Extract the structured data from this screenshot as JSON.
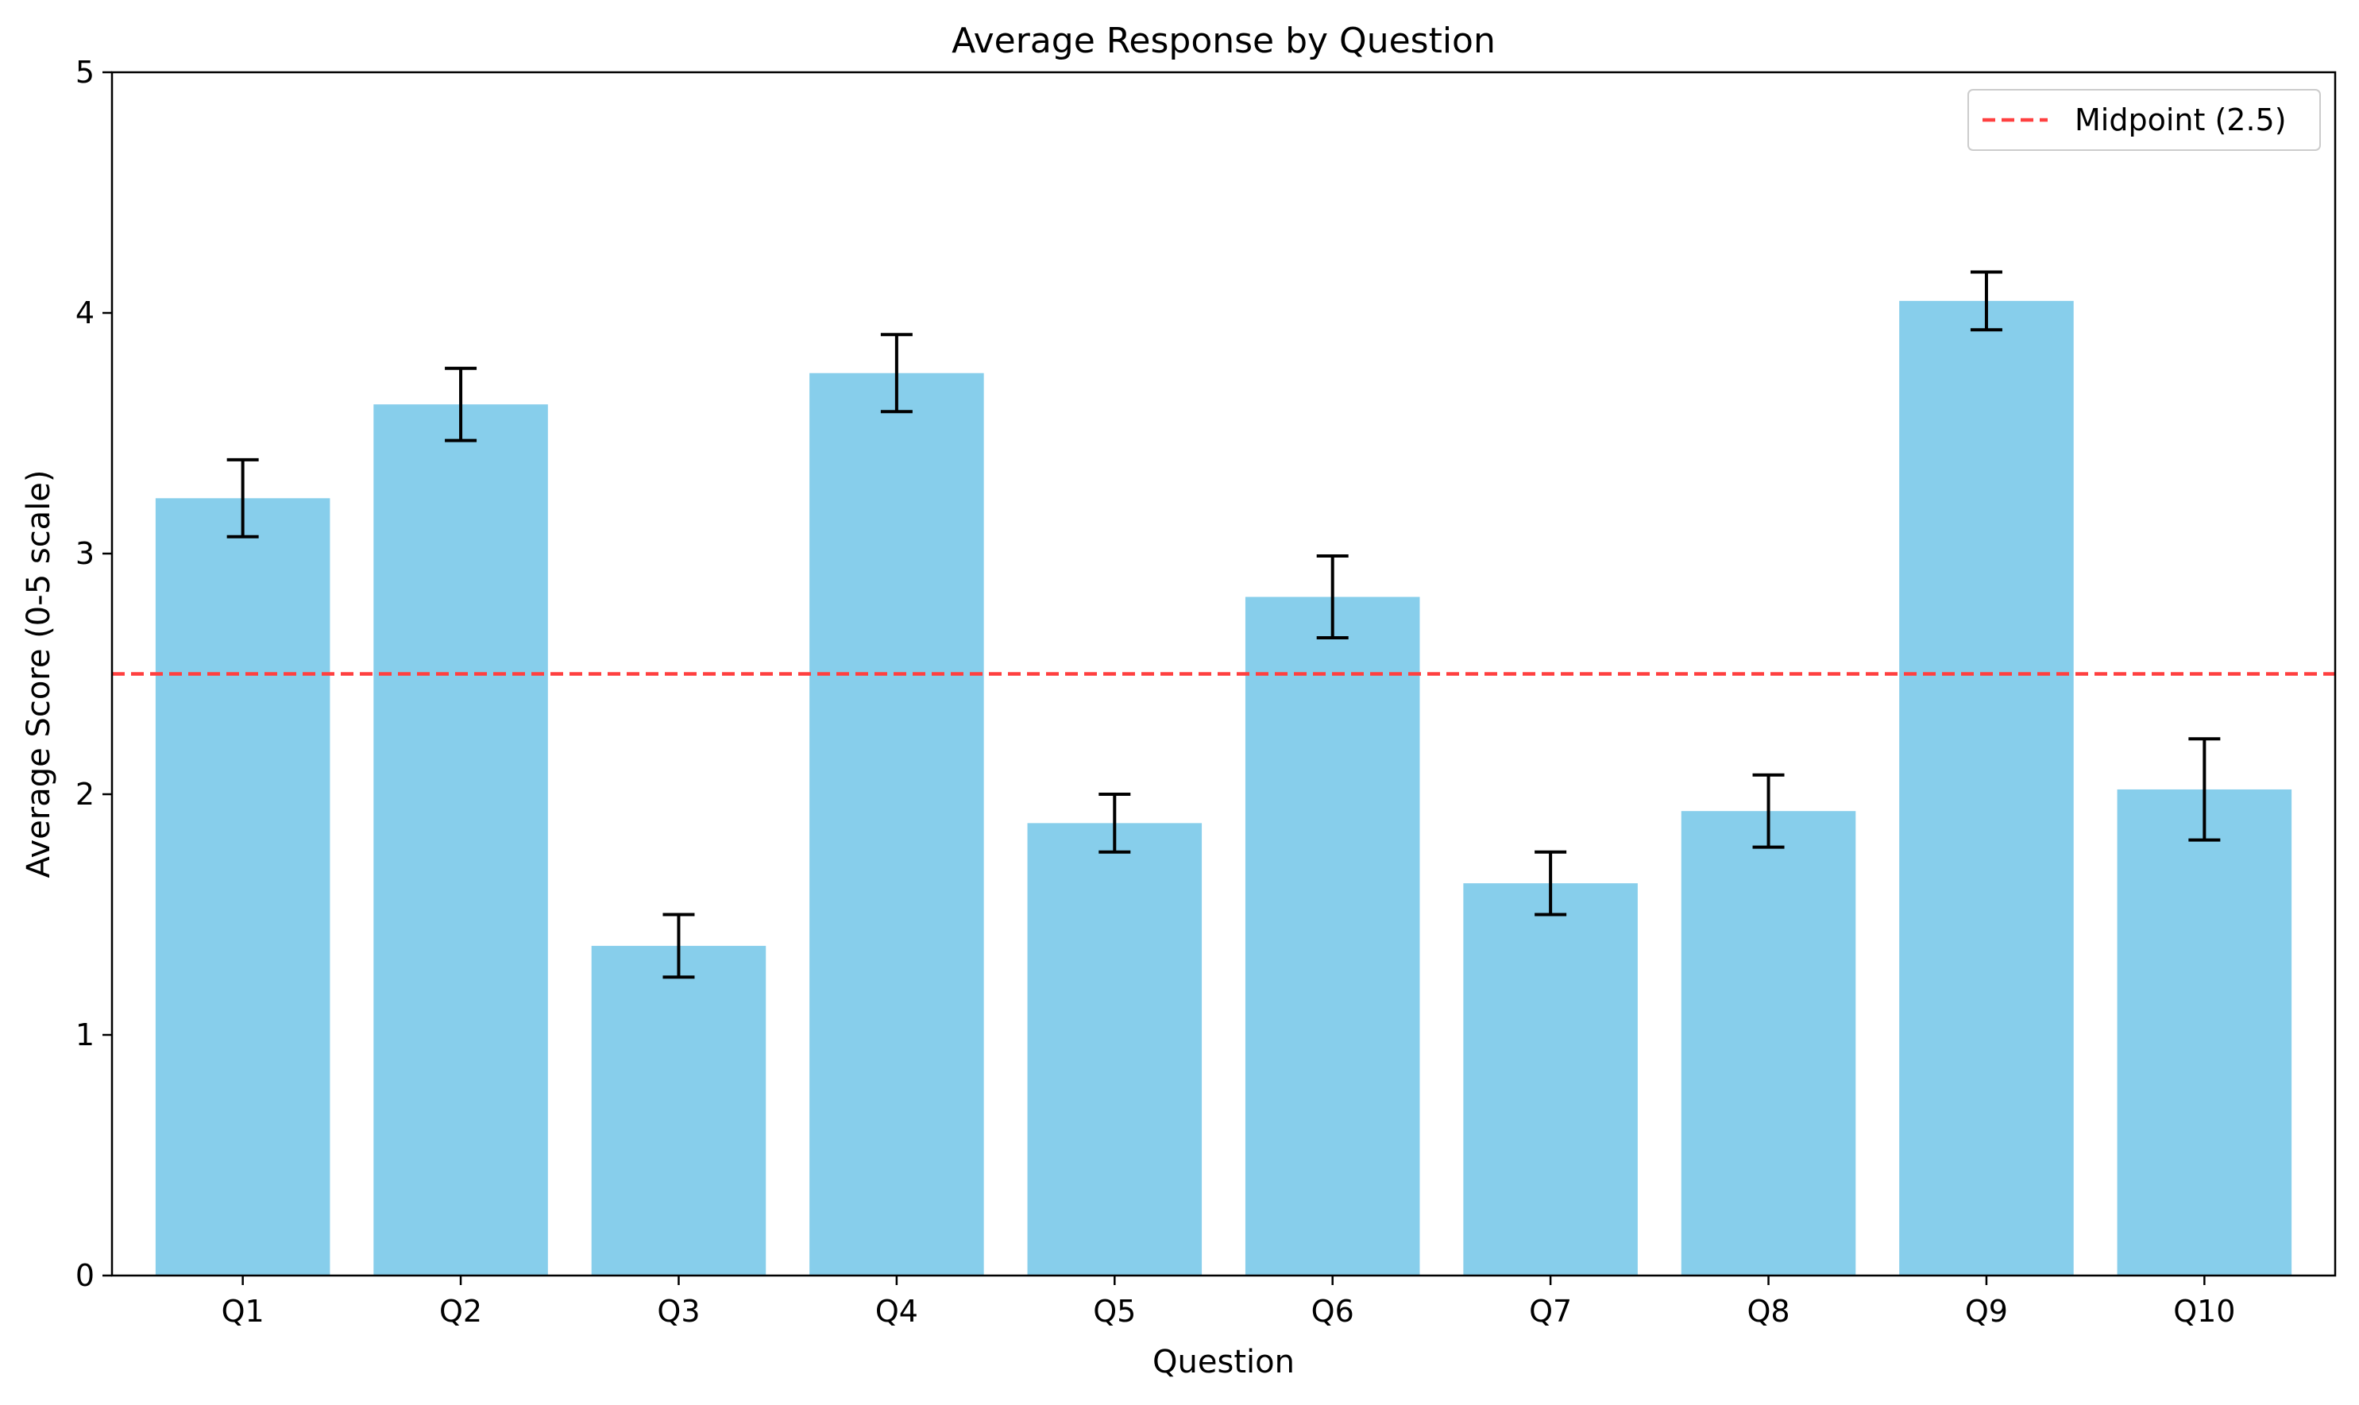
{
  "chart_data": {
    "type": "bar",
    "title": "Average Response by Question",
    "xlabel": "Question",
    "ylabel": "Average Score (0-5 scale)",
    "ylim": [
      0,
      5
    ],
    "yticks": [
      0,
      1,
      2,
      3,
      4,
      5
    ],
    "categories": [
      "Q1",
      "Q2",
      "Q3",
      "Q4",
      "Q5",
      "Q6",
      "Q7",
      "Q8",
      "Q9",
      "Q10"
    ],
    "values": [
      3.23,
      3.62,
      1.37,
      3.75,
      1.88,
      2.82,
      1.63,
      1.93,
      4.05,
      2.02
    ],
    "errors": [
      0.16,
      0.15,
      0.13,
      0.16,
      0.12,
      0.17,
      0.13,
      0.15,
      0.12,
      0.21
    ],
    "bar_color": "#87CEEB",
    "errorbar_color": "#000000",
    "reference_line": {
      "value": 2.5,
      "label": "Midpoint (2.5)",
      "color": "#FF4040",
      "style": "dashed"
    },
    "grid": false,
    "legend_position": "top-right"
  }
}
